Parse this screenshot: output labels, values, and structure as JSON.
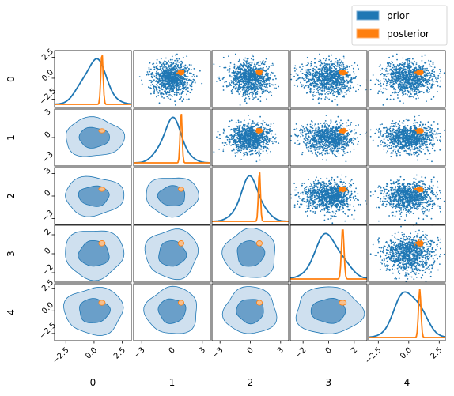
{
  "chart_data": {
    "type": "corner-pairplot",
    "dimensions": [
      "0",
      "1",
      "2",
      "3",
      "4"
    ],
    "legend": {
      "placement": "top-right",
      "entries": [
        {
          "name": "prior",
          "color": "#1f77b4"
        },
        {
          "name": "posterior",
          "color": "#ff7f0e"
        }
      ]
    },
    "prior": {
      "mean": [
        0,
        0,
        0,
        0,
        0
      ],
      "std": [
        1,
        1,
        1,
        1,
        1
      ],
      "n_samples": 1000
    },
    "posterior": {
      "mean": [
        0.7,
        0.9,
        0.9,
        1.1,
        0.9
      ],
      "std": [
        0.1,
        0.1,
        0.1,
        0.1,
        0.1
      ]
    },
    "axes": [
      {
        "range": [
          -3.5,
          3.3
        ],
        "ticks": [
          -2.5,
          0,
          2.5
        ],
        "tick_labels": [
          "−2.5",
          "0.0",
          "2.5"
        ]
      },
      {
        "range": [
          -3.8,
          3.8
        ],
        "ticks": [
          -3,
          0,
          3
        ],
        "tick_labels": [
          "−3",
          "0",
          "3"
        ]
      },
      {
        "range": [
          -3.8,
          3.8
        ],
        "ticks": [
          -3,
          0,
          3
        ],
        "tick_labels": [
          "−3",
          "0",
          "3"
        ]
      },
      {
        "range": [
          -3.0,
          3.0
        ],
        "ticks": [
          -2,
          0,
          2
        ],
        "tick_labels": [
          "−2",
          "0",
          "2"
        ]
      },
      {
        "range": [
          -3.3,
          3.0
        ],
        "ticks": [
          -2.5,
          0,
          2.5
        ],
        "tick_labels": [
          "−2.5",
          "0.0",
          "2.5"
        ]
      }
    ],
    "bottom_tick_labels": [
      [
        "−2.5",
        "0.0",
        "2.5"
      ],
      [
        "−3",
        "0",
        "3"
      ],
      [
        "−3",
        "0",
        "3"
      ],
      [
        "−2",
        "0",
        "2"
      ],
      [
        "−2.5",
        "0.0",
        "2.5"
      ]
    ],
    "upper_triangle": "scatter",
    "diagonal": "kde",
    "lower_triangle": "filled-contour",
    "colors": {
      "prior": "#1f77b4",
      "posterior": "#ff7f0e",
      "prior_outer_fill": "#cfe0ef",
      "prior_inner_fill": "#6a9fc9"
    }
  }
}
